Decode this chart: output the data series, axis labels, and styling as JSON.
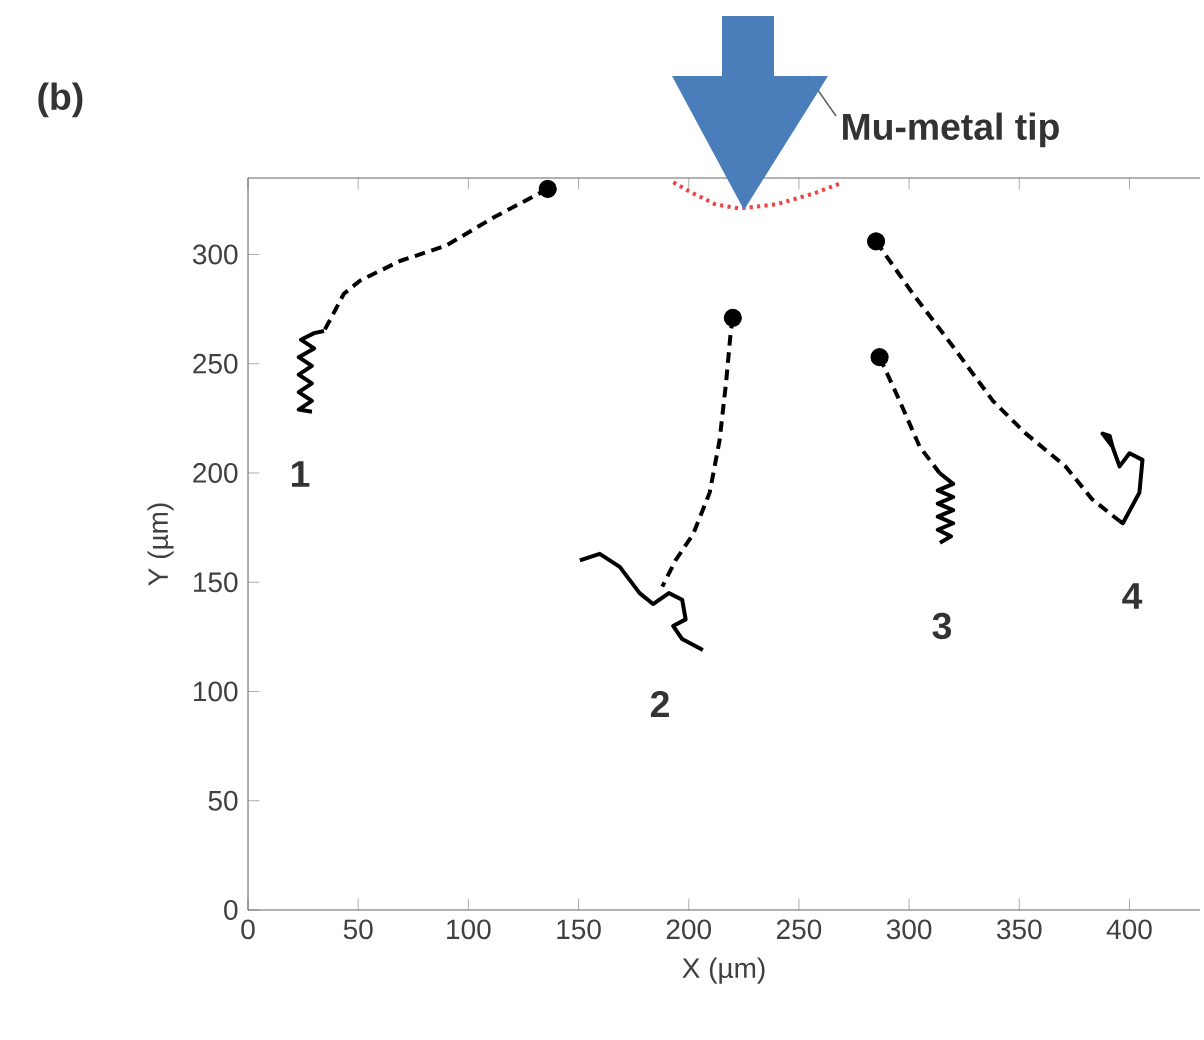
{
  "chart_data": {
    "type": "line",
    "xlabel": "X (µm)",
    "ylabel": "Y (µm)",
    "xlim": [
      0,
      432
    ],
    "ylim": [
      0,
      335
    ],
    "xticks": [
      0,
      50,
      100,
      150,
      200,
      250,
      300,
      350,
      400
    ],
    "yticks": [
      0,
      50,
      100,
      150,
      200,
      250,
      300
    ],
    "grid": false,
    "annotations": [
      "(b)",
      "Mu-metal tip",
      "1",
      "2",
      "3",
      "4"
    ],
    "series": [
      {
        "line_style": "dotted",
        "color": "#ee4444",
        "x": [
          193,
          200,
          212,
          223,
          240,
          257,
          270
        ],
        "values": [
          333,
          329,
          323,
          321,
          323,
          328,
          333
        ]
      },
      {
        "line_style": "dashed",
        "color": "#000000",
        "x": [
          136,
          111.6,
          89.8,
          68.9,
          50.8,
          43.5,
          37.2,
          34.5
        ],
        "values": [
          330,
          317,
          304,
          297,
          288,
          282,
          270,
          265
        ]
      },
      {
        "line_style": "solid",
        "color": "#000000",
        "x": [
          34.5,
          30,
          24,
          30,
          23,
          29,
          23,
          29,
          23,
          29,
          23,
          29
        ],
        "values": [
          265,
          264,
          261,
          257,
          253,
          249,
          245,
          241,
          237,
          233,
          229,
          228
        ]
      },
      {
        "line_style": "dashed",
        "color": "#000000",
        "x": [
          220,
          219,
          217,
          214,
          209.5,
          202,
          194,
          188
        ],
        "values": [
          271,
          264,
          242,
          215,
          191,
          172,
          160,
          148
        ]
      },
      {
        "line_style": "solid",
        "color": "#000000",
        "x": [
          150.6,
          159.6,
          168.7,
          177.7,
          183.8,
          191,
          197,
          198.6,
          192.9,
          197,
          206.4
        ],
        "values": [
          160,
          163,
          157,
          145,
          140,
          145,
          142,
          133,
          130,
          124,
          119
        ]
      },
      {
        "line_style": "dashed",
        "color": "#000000",
        "x": [
          286.6,
          295.7,
          304.8,
          313.8
        ],
        "values": [
          253,
          233,
          212,
          200
        ]
      },
      {
        "line_style": "solid",
        "color": "#000000",
        "x": [
          313.8,
          320,
          313,
          320,
          313,
          320,
          313,
          320,
          313,
          319,
          314
        ],
        "values": [
          200,
          195,
          192,
          189,
          186,
          183,
          180,
          177,
          174,
          171,
          168
        ]
      },
      {
        "line_style": "dashed",
        "color": "#000000",
        "x": [
          285,
          301.7,
          319.8,
          338,
          353,
          371,
          383,
          395.5
        ],
        "values": [
          306,
          282,
          258,
          233,
          218,
          203,
          188,
          178
        ]
      },
      {
        "line_style": "solid",
        "color": "#000000",
        "x": [
          395.5,
          397,
          404.5,
          405.9,
          400,
          395.5,
          392.3,
          387.8,
          391,
          392.3
        ],
        "values": [
          178,
          177,
          191,
          206,
          209,
          203,
          212,
          218,
          217,
          212
        ]
      },
      {
        "type": "scatter",
        "color": "#000000",
        "x": [
          136,
          220,
          286.6,
          285
        ],
        "values": [
          330,
          271,
          253,
          306
        ]
      }
    ]
  }
}
